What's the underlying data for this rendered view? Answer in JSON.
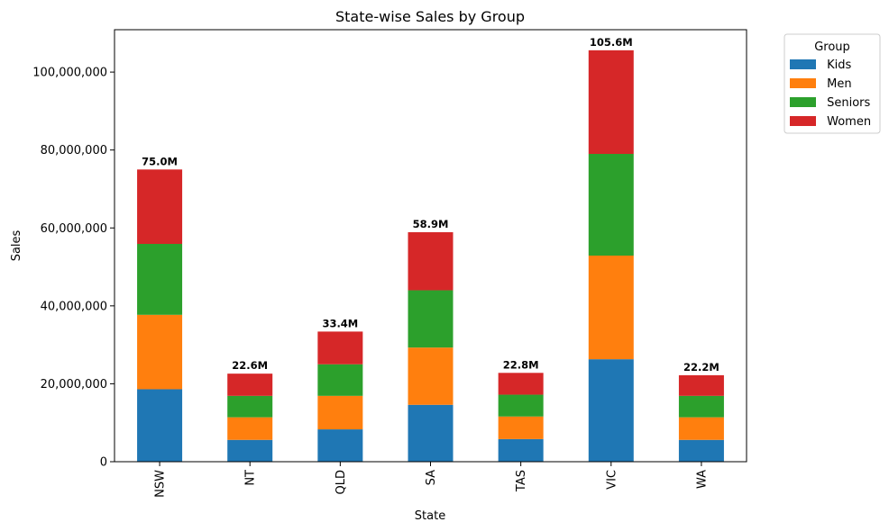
{
  "chart_data": {
    "type": "bar",
    "stacked": true,
    "title": "State-wise Sales by Group",
    "xlabel": "State",
    "ylabel": "Sales",
    "categories": [
      "NSW",
      "NT",
      "QLD",
      "SA",
      "TAS",
      "VIC",
      "WA"
    ],
    "ylim": [
      0,
      110880000
    ],
    "yticks": [
      0,
      20000000,
      40000000,
      60000000,
      80000000,
      100000000
    ],
    "ytick_labels": [
      "0",
      "20,000,000",
      "40,000,000",
      "60,000,000",
      "80,000,000",
      "100,000,000"
    ],
    "series": [
      {
        "name": " Kids",
        "color": "#1f77b4",
        "values": [
          18600000,
          5600000,
          8300000,
          14600000,
          5800000,
          26300000,
          5600000
        ]
      },
      {
        "name": " Men",
        "color": "#ff7f0e",
        "values": [
          19100000,
          5800000,
          8600000,
          14700000,
          5800000,
          26600000,
          5800000
        ]
      },
      {
        "name": " Seniors",
        "color": "#2ca02c",
        "values": [
          18200000,
          5500000,
          8100000,
          14700000,
          5600000,
          26100000,
          5500000
        ]
      },
      {
        "name": " Women",
        "color": "#d62728",
        "values": [
          19100000,
          5700000,
          8400000,
          14900000,
          5600000,
          26600000,
          5300000
        ]
      }
    ],
    "totals_labels": [
      "75.0M",
      "22.6M",
      "33.4M",
      "58.9M",
      "22.8M",
      "105.6M",
      "22.2M"
    ],
    "legend": {
      "title": "Group",
      "placement": "outside-top-right"
    },
    "grid": false
  }
}
